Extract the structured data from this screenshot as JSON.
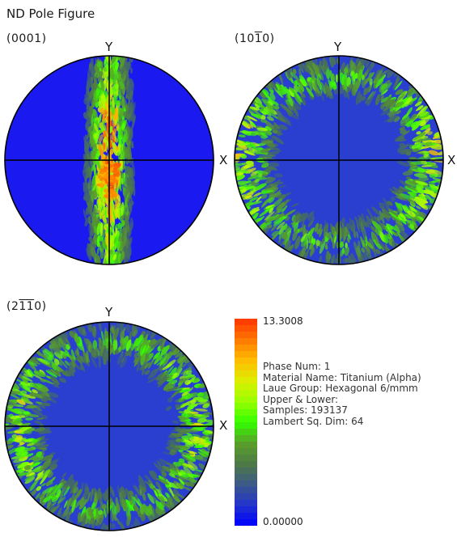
{
  "page": {
    "title": "ND Pole Figure"
  },
  "chart_data": [
    {
      "type": "heatmap",
      "title": "(0001)",
      "title_parts": {
        "prefix": "(000",
        "bar": "",
        "suffix": "1)"
      },
      "xlabel": "X",
      "ylabel": "Y",
      "projection": "stereographic pole figure",
      "texture": "basal poles concentrated in a vertical band along Y, peak near centre just below X axis",
      "peak_value": 13.3,
      "colors": {
        "background": "#1a1af0"
      }
    },
    {
      "type": "heatmap",
      "title": "(10-10)",
      "title_parts": {
        "prefix": "(10",
        "bar": "1",
        "suffix": "0)"
      },
      "xlabel": "X",
      "ylabel": "Y",
      "projection": "stereographic pole figure",
      "texture": "ring of intensity near the rim, strongest at left and right edges along X",
      "colors": {
        "background": "#2a3fd0"
      }
    },
    {
      "type": "heatmap",
      "title": "(2-1-10)",
      "title_parts": {
        "prefix": "(2",
        "bar": "11",
        "suffix": "0)"
      },
      "xlabel": "X",
      "ylabel": "Y",
      "projection": "stereographic pole figure",
      "texture": "ring of intensity near the rim, stronger at left and right edges",
      "colors": {
        "background": "#2a3fd0"
      }
    }
  ],
  "legend": {
    "max_label": "13.3008",
    "min_label": "0.00000",
    "info": [
      "Phase Num: 1",
      "Material Name: Titanium (Alpha)",
      "Laue Group: Hexagonal 6/mmm",
      "Upper & Lower:",
      "Samples: 193137",
      "Lambert Sq. Dim: 64"
    ],
    "colors": {
      "stops": [
        "#0000ff",
        "#2233cc",
        "#3a5a88",
        "#4e7a44",
        "#5aa02a",
        "#33ff00",
        "#99ff00",
        "#ddee00",
        "#ffbb00",
        "#ff7700",
        "#ff3300"
      ]
    }
  }
}
